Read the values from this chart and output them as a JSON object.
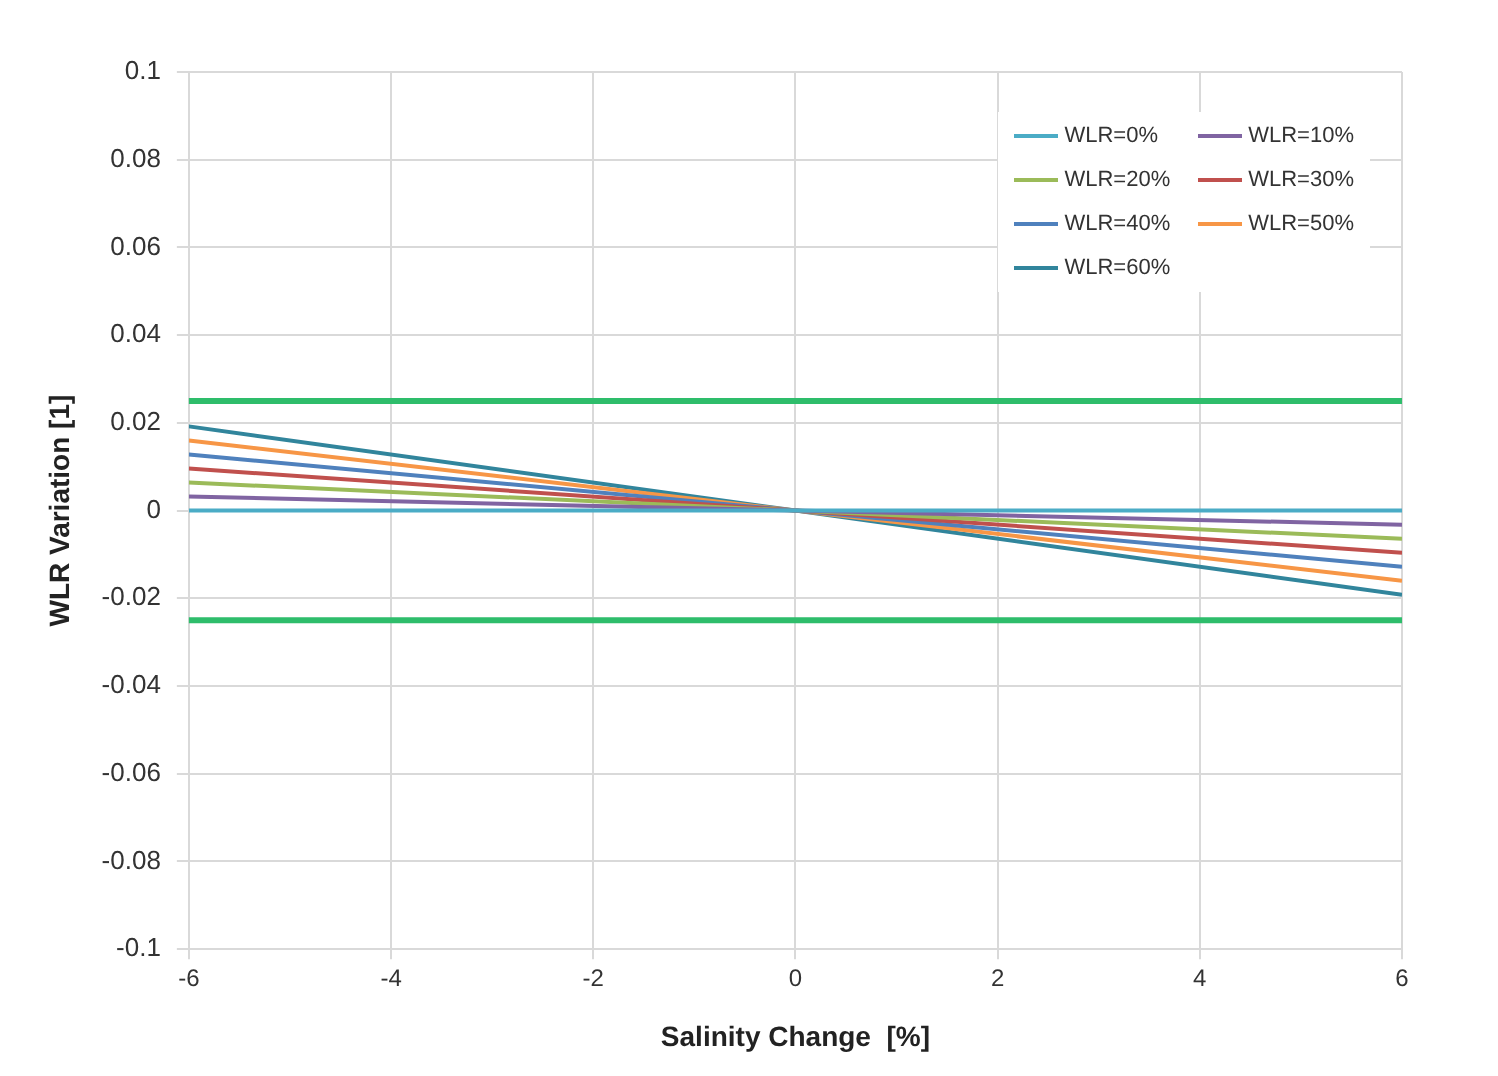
{
  "chart_data": {
    "type": "line",
    "xlabel": "Salinity Change  [%]",
    "ylabel": "WLR Variation [1]",
    "x": [
      -6,
      0,
      6
    ],
    "series": [
      {
        "name": "WLR=0%",
        "color": "#4bacc6",
        "values": [
          0,
          0,
          0
        ]
      },
      {
        "name": "WLR=10%",
        "color": "#8064a2",
        "values": [
          0.0032,
          0,
          -0.0032
        ]
      },
      {
        "name": "WLR=20%",
        "color": "#9bbb59",
        "values": [
          0.0064,
          0,
          -0.0064
        ]
      },
      {
        "name": "WLR=30%",
        "color": "#c0504d",
        "values": [
          0.0096,
          0,
          -0.0096
        ]
      },
      {
        "name": "WLR=40%",
        "color": "#4f81bd",
        "values": [
          0.0128,
          0,
          -0.0128
        ]
      },
      {
        "name": "WLR=50%",
        "color": "#f79646",
        "values": [
          0.016,
          0,
          -0.016
        ]
      },
      {
        "name": "WLR=60%",
        "color": "#31859c",
        "values": [
          0.0192,
          0,
          -0.0192
        ]
      }
    ],
    "xlim": [
      -6,
      6
    ],
    "xticks": [
      -6,
      -4,
      -2,
      0,
      2,
      4,
      6
    ],
    "ylim": [
      -0.1,
      0.1
    ],
    "yticks": [
      -0.1,
      -0.08,
      -0.06,
      -0.04,
      -0.02,
      0,
      0.02,
      0.04,
      0.06,
      0.08,
      0.1
    ],
    "ref_lines": [
      {
        "axis": "y",
        "value": 0.025,
        "color": "#2ebd6b"
      },
      {
        "axis": "y",
        "value": -0.025,
        "color": "#2ebd6b"
      }
    ],
    "grid": true,
    "legend": "top right",
    "marker": "none",
    "line_style": "solid"
  }
}
